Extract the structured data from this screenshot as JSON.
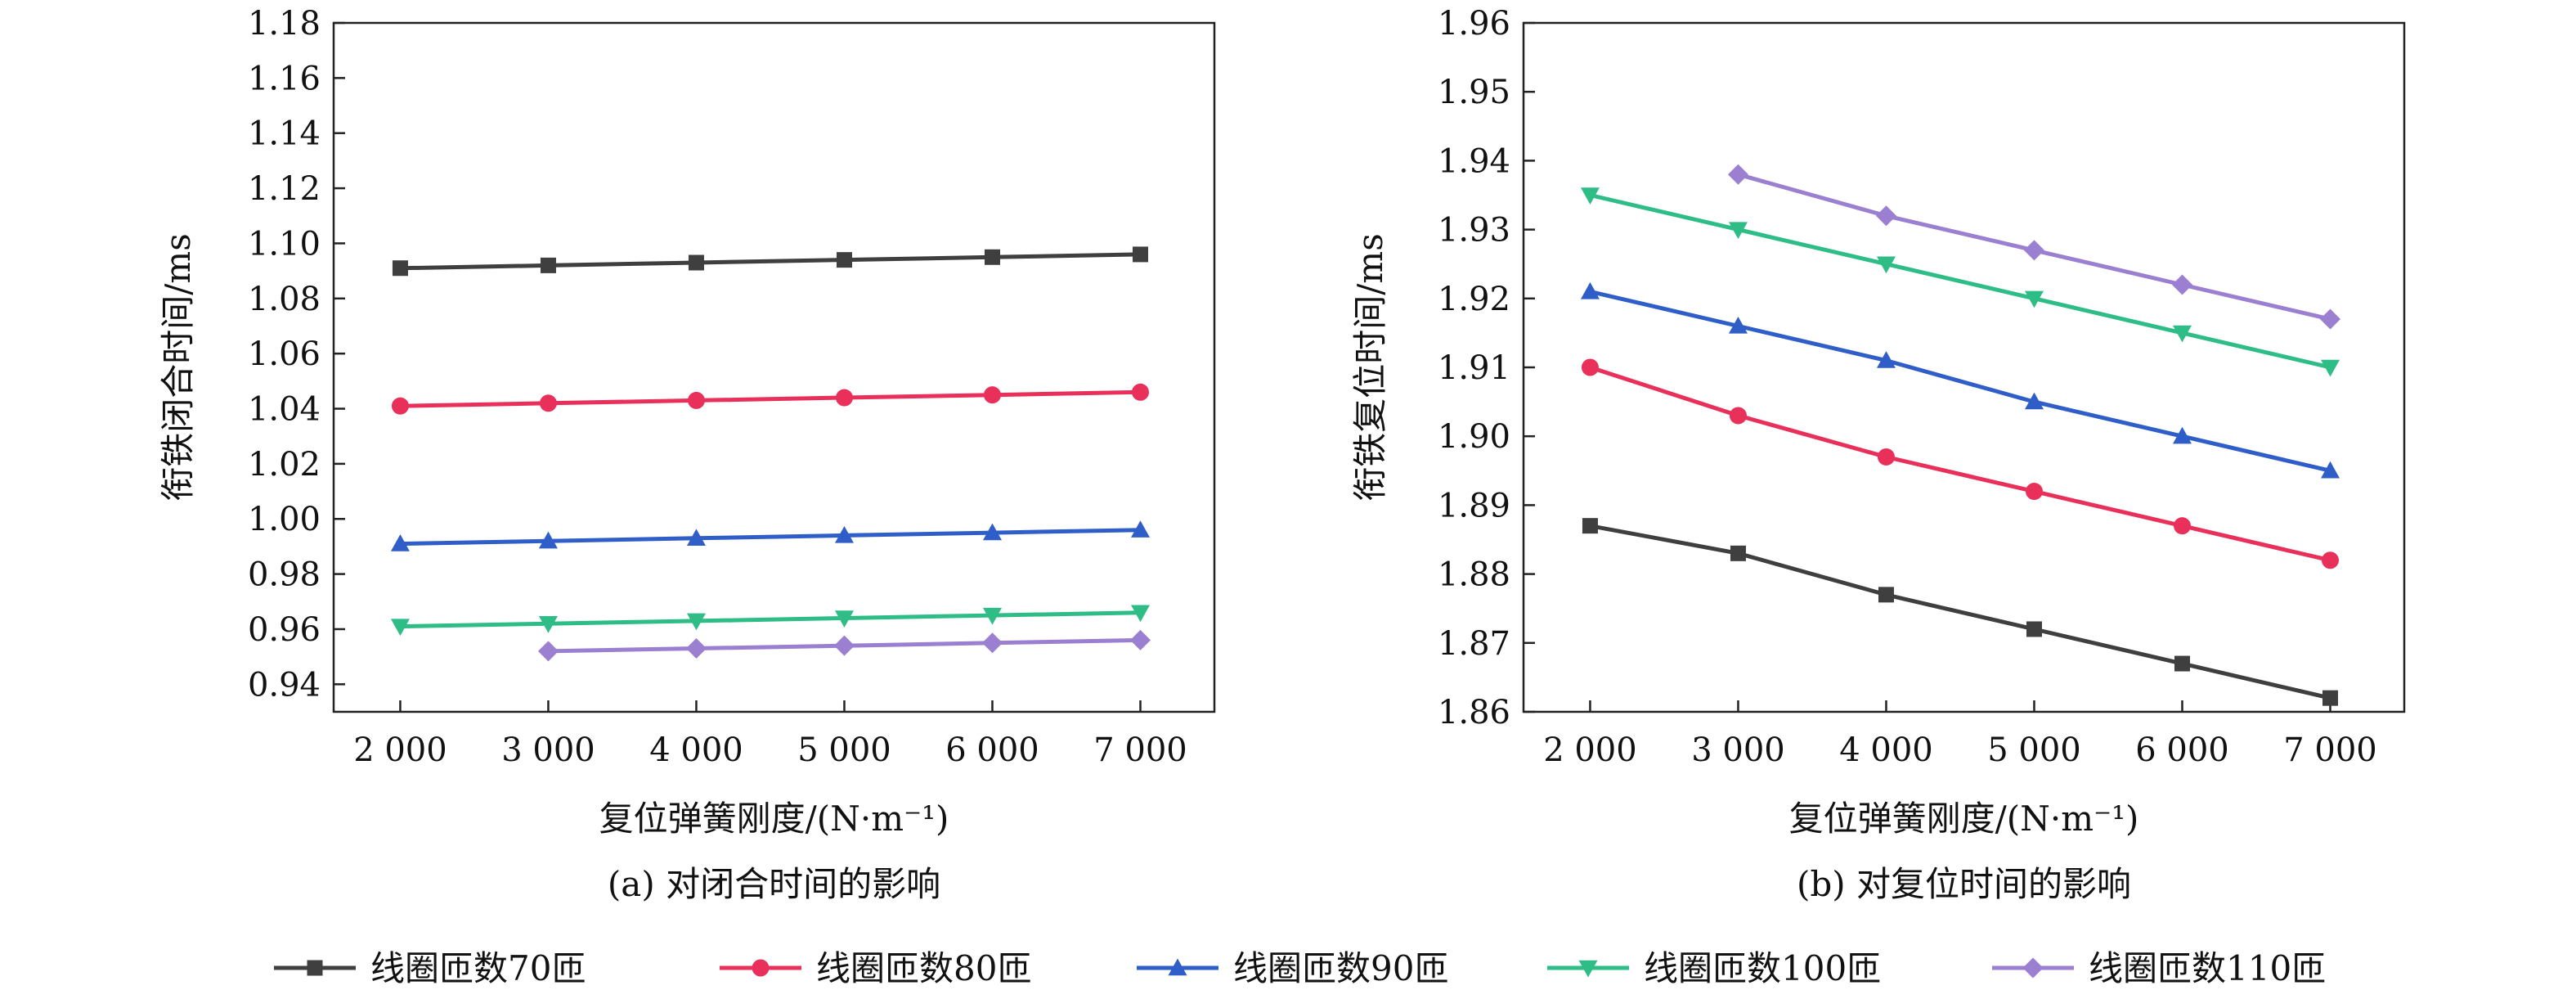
{
  "colors": {
    "s70": "#3f3f3f",
    "s80": "#e8305a",
    "s90": "#2f5ec8",
    "s100": "#2ebd86",
    "s110": "#9b7fd1",
    "axis": "#222222"
  },
  "legend": [
    {
      "key": "s70",
      "label": "线圈匝数70匝",
      "marker": "square"
    },
    {
      "key": "s80",
      "label": "线圈匝数80匝",
      "marker": "circle"
    },
    {
      "key": "s90",
      "label": "线圈匝数90匝",
      "marker": "triangle-up"
    },
    {
      "key": "s100",
      "label": "线圈匝数100匝",
      "marker": "triangle-down"
    },
    {
      "key": "s110",
      "label": "线圈匝数110匝",
      "marker": "diamond"
    }
  ],
  "chart_data": [
    {
      "type": "line",
      "caption": "(a) 对闭合时间的影响",
      "xlabel": "复位弹簧刚度/(N·m⁻¹)",
      "ylabel": "衔铁闭合时间/ms",
      "x_tick_labels": [
        "2 000",
        "3 000",
        "4 000",
        "5 000",
        "6 000",
        "7 000"
      ],
      "x_ticks": [
        2000,
        3000,
        4000,
        5000,
        6000,
        7000
      ],
      "xlim": [
        1550,
        7500
      ],
      "ylim": [
        0.93,
        1.18
      ],
      "y_ticks": [
        0.94,
        0.96,
        0.98,
        1.0,
        1.02,
        1.04,
        1.06,
        1.08,
        1.1,
        1.12,
        1.14,
        1.16,
        1.18
      ],
      "y_tick_labels": [
        "0.94",
        "0.96",
        "0.98",
        "1.00",
        "1.02",
        "1.04",
        "1.06",
        "1.08",
        "1.10",
        "1.12",
        "1.14",
        "1.16",
        "1.18"
      ],
      "series": [
        {
          "key": "s70",
          "name": "线圈匝数70匝",
          "x": [
            2000,
            3000,
            4000,
            5000,
            6000,
            7000
          ],
          "y": [
            1.091,
            1.092,
            1.093,
            1.094,
            1.095,
            1.096
          ]
        },
        {
          "key": "s80",
          "name": "线圈匝数80匝",
          "x": [
            2000,
            3000,
            4000,
            5000,
            6000,
            7000
          ],
          "y": [
            1.041,
            1.042,
            1.043,
            1.044,
            1.045,
            1.046
          ]
        },
        {
          "key": "s90",
          "name": "线圈匝数90匝",
          "x": [
            2000,
            3000,
            4000,
            5000,
            6000,
            7000
          ],
          "y": [
            0.991,
            0.992,
            0.993,
            0.994,
            0.995,
            0.996
          ]
        },
        {
          "key": "s100",
          "name": "线圈匝数100匝",
          "x": [
            2000,
            3000,
            4000,
            5000,
            6000,
            7000
          ],
          "y": [
            0.961,
            0.962,
            0.963,
            0.964,
            0.965,
            0.966
          ]
        },
        {
          "key": "s110",
          "name": "线圈匝数110匝",
          "x": [
            3000,
            4000,
            5000,
            6000,
            7000
          ],
          "y": [
            0.952,
            0.953,
            0.954,
            0.955,
            0.956
          ]
        }
      ]
    },
    {
      "type": "line",
      "caption": "(b) 对复位时间的影响",
      "xlabel": "复位弹簧刚度/(N·m⁻¹)",
      "ylabel": "衔铁复位时间/ms",
      "x_tick_labels": [
        "2 000",
        "3 000",
        "4 000",
        "5 000",
        "6 000",
        "7 000"
      ],
      "x_ticks": [
        2000,
        3000,
        4000,
        5000,
        6000,
        7000
      ],
      "xlim": [
        1550,
        7500
      ],
      "ylim": [
        1.86,
        1.96
      ],
      "y_ticks": [
        1.86,
        1.87,
        1.88,
        1.89,
        1.9,
        1.91,
        1.92,
        1.93,
        1.94,
        1.95,
        1.96
      ],
      "y_tick_labels": [
        "1.86",
        "1.87",
        "1.88",
        "1.89",
        "1.90",
        "1.91",
        "1.92",
        "1.93",
        "1.94",
        "1.95",
        "1.96"
      ],
      "series": [
        {
          "key": "s70",
          "name": "线圈匝数70匝",
          "x": [
            2000,
            3000,
            4000,
            5000,
            6000,
            7000
          ],
          "y": [
            1.887,
            1.883,
            1.877,
            1.872,
            1.867,
            1.862
          ]
        },
        {
          "key": "s80",
          "name": "线圈匝数80匝",
          "x": [
            2000,
            3000,
            4000,
            5000,
            6000,
            7000
          ],
          "y": [
            1.91,
            1.903,
            1.897,
            1.892,
            1.887,
            1.882
          ]
        },
        {
          "key": "s90",
          "name": "线圈匝数90匝",
          "x": [
            2000,
            3000,
            4000,
            5000,
            6000,
            7000
          ],
          "y": [
            1.921,
            1.916,
            1.911,
            1.905,
            1.9,
            1.895
          ]
        },
        {
          "key": "s100",
          "name": "线圈匝数100匝",
          "x": [
            2000,
            3000,
            4000,
            5000,
            6000,
            7000
          ],
          "y": [
            1.935,
            1.93,
            1.925,
            1.92,
            1.915,
            1.91
          ]
        },
        {
          "key": "s110",
          "name": "线圈匝数110匝",
          "x": [
            3000,
            4000,
            5000,
            6000,
            7000
          ],
          "y": [
            1.938,
            1.932,
            1.927,
            1.922,
            1.917
          ]
        }
      ]
    }
  ]
}
